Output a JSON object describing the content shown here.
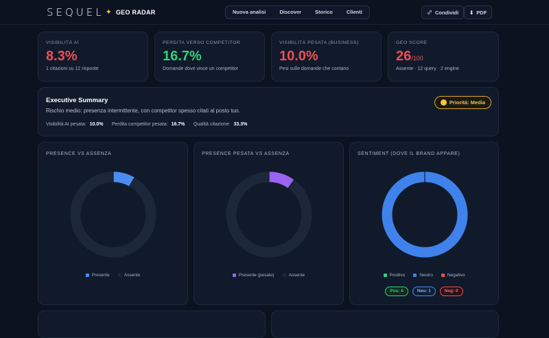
{
  "brand": {
    "logo": "SEQUEL",
    "product": "GEO RADAR"
  },
  "nav": [
    "Nuova analisi",
    "Discover",
    "Storico",
    "Clienti"
  ],
  "actions": {
    "share": "Condividi",
    "pdf": "PDF"
  },
  "kpis": [
    {
      "label": "Visibilità AI",
      "value": "8.3%",
      "color": "#ef4e55",
      "desc": "1 citazioni su 12 risposte"
    },
    {
      "label": "Perdita verso competitor",
      "value": "16.7%",
      "color": "#2ed47a",
      "desc": "Domande dove vince un competitor"
    },
    {
      "label": "Visibilità pesata (business)",
      "value": "10.0%",
      "color": "#ef4e55",
      "desc": "Pesi sulle domande che contano"
    },
    {
      "label": "GEO Score",
      "value": "26",
      "suffix": "/100",
      "color": "#ef4e55",
      "desc": "Assente · 12 query · 2 engine"
    }
  ],
  "summary": {
    "title": "Executive Summary",
    "text": "Rischio medio: presenza intermittente, con competitor spesso citati al posto tuo.",
    "priority": "Priorità: Media",
    "metrics": [
      {
        "label": "Visibilità AI pesata:",
        "value": "10.0%"
      },
      {
        "label": "Perdita competitor pesata:",
        "value": "16.7%"
      },
      {
        "label": "Qualità citazione:",
        "value": "33.3%"
      }
    ]
  },
  "chart_data": [
    {
      "type": "pie",
      "title": "Presence vs Assenza",
      "labels": [
        "Presente",
        "Assente"
      ],
      "values": [
        8.3,
        91.7
      ],
      "colors": [
        "#4a8cf0",
        "#1c2839"
      ]
    },
    {
      "type": "pie",
      "title": "Presence pesata vs Assenza",
      "labels": [
        "Presente (pesato)",
        "Assente"
      ],
      "values": [
        10.0,
        90.0
      ],
      "colors": [
        "#9a63f0",
        "#1c2839"
      ]
    },
    {
      "type": "pie",
      "title": "Sentiment (dove il brand appare)",
      "labels": [
        "Positivo",
        "Neutro",
        "Negativo"
      ],
      "values": [
        0,
        1,
        0
      ],
      "colors": [
        "#2ed47a",
        "#3f82ec",
        "#ef4e55"
      ]
    }
  ],
  "sentiment_pills": [
    {
      "label": "Pos: 0",
      "color": "#2ed47a"
    },
    {
      "label": "Neu: 1",
      "color": "#4a8cf0"
    },
    {
      "label": "Neg: 0",
      "color": "#ef4e55"
    }
  ]
}
